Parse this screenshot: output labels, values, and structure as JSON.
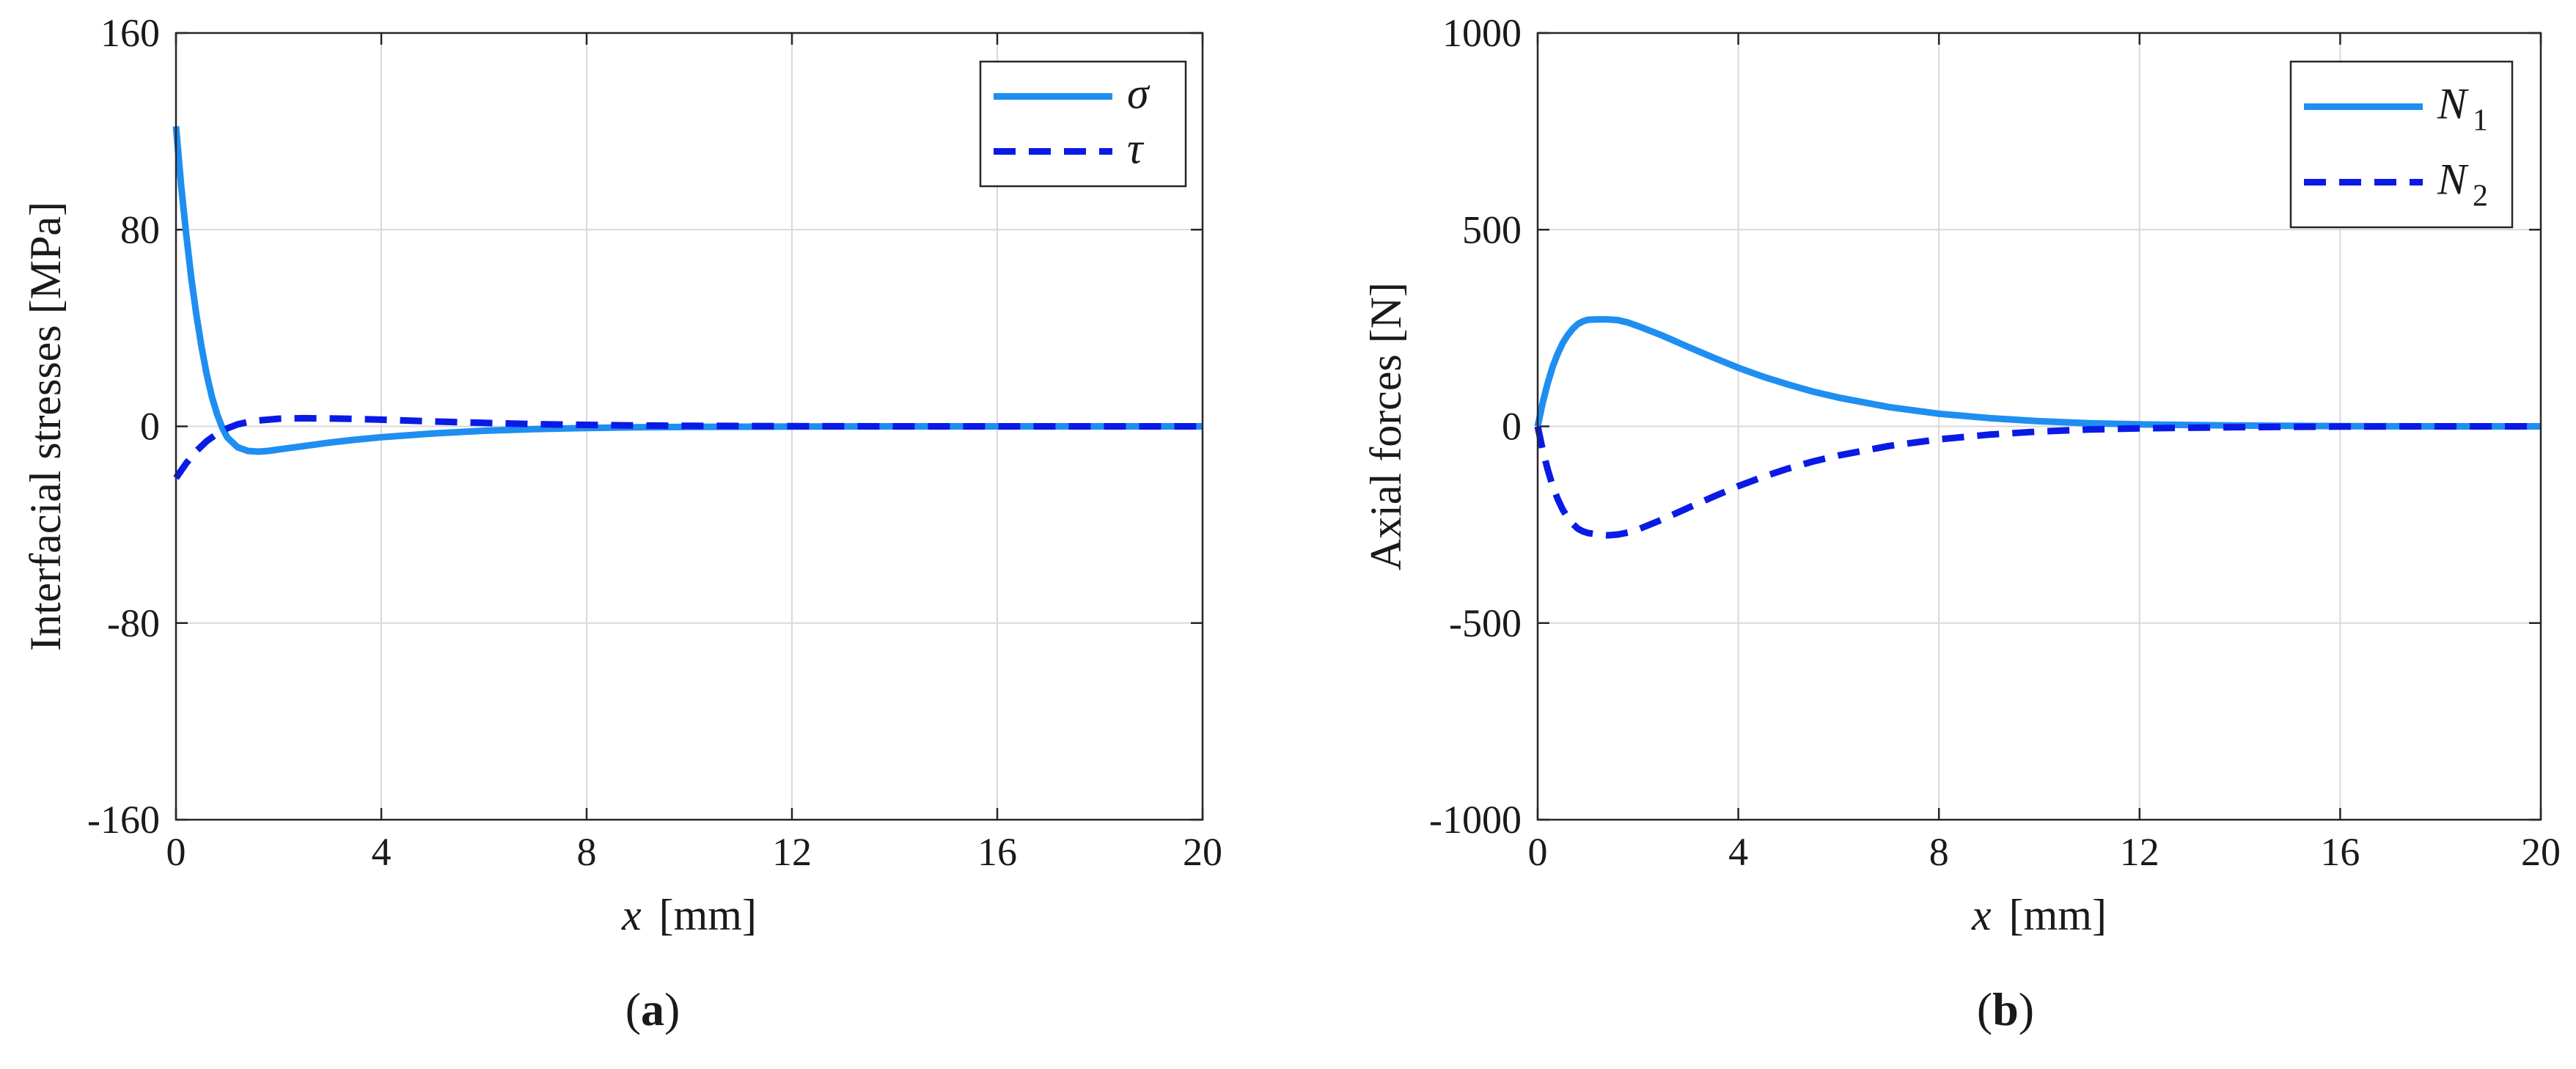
{
  "chart_data": [
    {
      "type": "line",
      "panel_label": "a",
      "xlabel_var": "x",
      "xlabel_unit": "[mm]",
      "ylabel": "Interfacial stresses  [MPa]",
      "xlim": [
        0,
        20
      ],
      "ylim": [
        -160,
        160
      ],
      "xticks": [
        "0",
        "4",
        "8",
        "12",
        "16",
        "20"
      ],
      "yticks": [
        "160",
        "80",
        "0",
        "-80",
        "-160"
      ],
      "grid": true,
      "legend_position": "top-right",
      "series": [
        {
          "name": "σ",
          "style": "solid",
          "color": "#1f8ef1",
          "points": [
            [
              0,
              122
            ],
            [
              0.1,
              98
            ],
            [
              0.2,
              78
            ],
            [
              0.3,
              60
            ],
            [
              0.4,
              45
            ],
            [
              0.5,
              32
            ],
            [
              0.6,
              21
            ],
            [
              0.7,
              12
            ],
            [
              0.8,
              5
            ],
            [
              0.9,
              -0.5
            ],
            [
              1.0,
              -4.5
            ],
            [
              1.2,
              -8.5
            ],
            [
              1.4,
              -10
            ],
            [
              1.6,
              -10.3
            ],
            [
              1.8,
              -10
            ],
            [
              2.0,
              -9.4
            ],
            [
              2.5,
              -8
            ],
            [
              3.0,
              -6.6
            ],
            [
              3.5,
              -5.4
            ],
            [
              4.0,
              -4.4
            ],
            [
              5,
              -2.9
            ],
            [
              6,
              -1.8
            ],
            [
              7,
              -1.1
            ],
            [
              8,
              -0.7
            ],
            [
              9,
              -0.4
            ],
            [
              10,
              -0.2
            ],
            [
              12,
              -0.1
            ],
            [
              14,
              0
            ],
            [
              16,
              0
            ],
            [
              18,
              0
            ],
            [
              20,
              0
            ]
          ]
        },
        {
          "name": "τ",
          "style": "dashed",
          "color": "#0a1ae6",
          "points": [
            [
              0,
              -21
            ],
            [
              0.2,
              -15
            ],
            [
              0.4,
              -10
            ],
            [
              0.6,
              -6
            ],
            [
              0.8,
              -3
            ],
            [
              1.0,
              -0.8
            ],
            [
              1.2,
              0.8
            ],
            [
              1.5,
              2.2
            ],
            [
              2.0,
              3.1
            ],
            [
              2.5,
              3.3
            ],
            [
              3.0,
              3.2
            ],
            [
              3.5,
              3.0
            ],
            [
              4,
              2.7
            ],
            [
              5,
              2.0
            ],
            [
              6,
              1.4
            ],
            [
              7,
              0.9
            ],
            [
              8,
              0.6
            ],
            [
              9,
              0.35
            ],
            [
              10,
              0.2
            ],
            [
              12,
              0.06
            ],
            [
              14,
              0
            ],
            [
              16,
              0
            ],
            [
              18,
              0
            ],
            [
              20,
              0
            ]
          ]
        }
      ]
    },
    {
      "type": "line",
      "panel_label": "b",
      "xlabel_var": "x",
      "xlabel_unit": "[mm]",
      "ylabel": "Axial forces  [N]",
      "xlim": [
        0,
        20
      ],
      "ylim": [
        -1000,
        1000
      ],
      "xticks": [
        "0",
        "4",
        "8",
        "12",
        "16",
        "20"
      ],
      "yticks": [
        "1000",
        "500",
        "0",
        "-500",
        "-1000"
      ],
      "grid": true,
      "legend_position": "top-right",
      "series": [
        {
          "name": "N",
          "subscript": "1",
          "style": "solid",
          "color": "#1f8ef1",
          "points": [
            [
              0,
              0
            ],
            [
              0.1,
              60
            ],
            [
              0.2,
              110
            ],
            [
              0.3,
              152
            ],
            [
              0.4,
              185
            ],
            [
              0.5,
              212
            ],
            [
              0.6,
              232
            ],
            [
              0.7,
              248
            ],
            [
              0.8,
              260
            ],
            [
              0.9,
              267
            ],
            [
              1.0,
              271
            ],
            [
              1.2,
              272
            ],
            [
              1.4,
              272
            ],
            [
              1.6,
              270
            ],
            [
              1.8,
              264
            ],
            [
              2.0,
              255
            ],
            [
              2.5,
              230
            ],
            [
              3.0,
              202
            ],
            [
              3.5,
              175
            ],
            [
              4,
              149
            ],
            [
              4.5,
              126
            ],
            [
              5,
              106
            ],
            [
              5.5,
              88
            ],
            [
              6,
              73
            ],
            [
              7,
              49
            ],
            [
              8,
              32
            ],
            [
              9,
              21
            ],
            [
              10,
              13
            ],
            [
              11,
              8
            ],
            [
              12,
              5
            ],
            [
              14,
              2
            ],
            [
              16,
              0.5
            ],
            [
              18,
              0
            ],
            [
              20,
              0
            ]
          ]
        },
        {
          "name": "N",
          "subscript": "2",
          "style": "dashed",
          "color": "#0a1ae6",
          "points": [
            [
              0,
              0
            ],
            [
              0.1,
              -60
            ],
            [
              0.2,
              -110
            ],
            [
              0.3,
              -152
            ],
            [
              0.4,
              -185
            ],
            [
              0.5,
              -212
            ],
            [
              0.6,
              -232
            ],
            [
              0.7,
              -248
            ],
            [
              0.8,
              -260
            ],
            [
              0.9,
              -267
            ],
            [
              1.0,
              -271
            ],
            [
              1.2,
              -275
            ],
            [
              1.4,
              -277
            ],
            [
              1.6,
              -275
            ],
            [
              1.8,
              -270
            ],
            [
              2.0,
              -262
            ],
            [
              2.5,
              -236
            ],
            [
              3.0,
              -207
            ],
            [
              3.5,
              -179
            ],
            [
              4,
              -152
            ],
            [
              4.5,
              -128
            ],
            [
              5,
              -107
            ],
            [
              5.5,
              -89
            ],
            [
              6,
              -74
            ],
            [
              7,
              -50
            ],
            [
              8,
              -33
            ],
            [
              9,
              -21
            ],
            [
              10,
              -13
            ],
            [
              11,
              -8
            ],
            [
              12,
              -5
            ],
            [
              14,
              -2
            ],
            [
              16,
              -0.5
            ],
            [
              18,
              0
            ],
            [
              20,
              0
            ]
          ]
        }
      ]
    }
  ]
}
